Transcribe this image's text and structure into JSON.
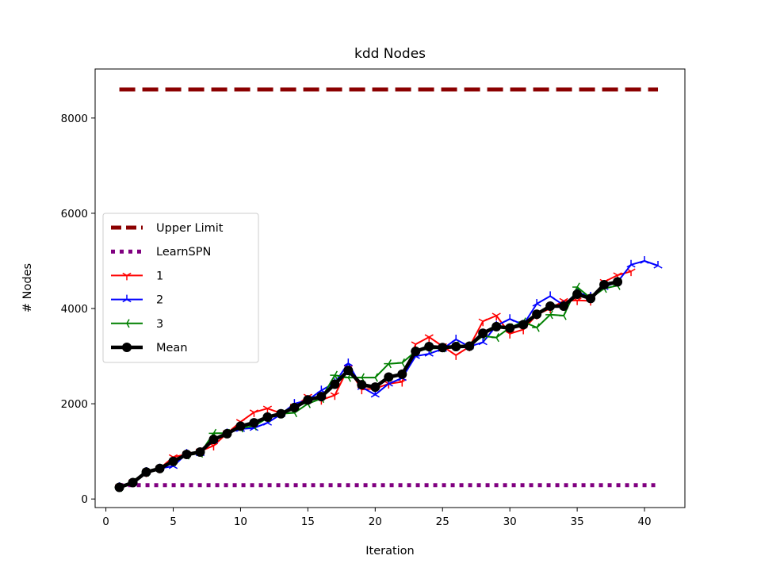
{
  "chart_data": {
    "type": "line",
    "title": "kdd Nodes",
    "xlabel": "Iteration",
    "ylabel": "# Nodes",
    "xlim": [
      -0.8,
      43.0
    ],
    "ylim": [
      -180,
      9030
    ],
    "xticks": [
      0,
      5,
      10,
      15,
      20,
      25,
      30,
      35,
      40
    ],
    "yticks": [
      0,
      2000,
      4000,
      6000,
      8000
    ],
    "grid": false,
    "legend_position": "center-left",
    "reference_lines": [
      {
        "name": "Upper Limit",
        "y": 8600,
        "x_range": [
          1,
          41
        ],
        "color": "#8b0000",
        "style": "dashed"
      },
      {
        "name": "LearnSPN",
        "y": 290,
        "x_range": [
          1,
          41
        ],
        "color": "#800080",
        "style": "dotted"
      }
    ],
    "series": [
      {
        "name": "1",
        "color": "#ff0000",
        "marker": "tri_down",
        "x": [
          1,
          2,
          3,
          4,
          5,
          6,
          7,
          8,
          9,
          10,
          11,
          12,
          13,
          14,
          15,
          16,
          17,
          18,
          19,
          20,
          21,
          22,
          23,
          24,
          25,
          26,
          27,
          28,
          29,
          30,
          31,
          32,
          33,
          34,
          35,
          36,
          37,
          38,
          39
        ],
        "y": [
          250,
          350,
          560,
          640,
          880,
          940,
          1000,
          1120,
          1380,
          1620,
          1820,
          1900,
          1800,
          1940,
          2150,
          2080,
          2180,
          2750,
          2300,
          2320,
          2420,
          2460,
          3250,
          3400,
          3210,
          3020,
          3200,
          3730,
          3850,
          3470,
          3560,
          3870,
          4000,
          4160,
          4170,
          4160,
          4560,
          4700,
          4780
        ]
      },
      {
        "name": "2",
        "color": "#0000ff",
        "marker": "tri_up",
        "x": [
          1,
          2,
          3,
          4,
          5,
          6,
          7,
          8,
          9,
          10,
          11,
          12,
          13,
          14,
          15,
          16,
          17,
          18,
          19,
          20,
          21,
          22,
          23,
          24,
          25,
          26,
          27,
          28,
          29,
          30,
          31,
          32,
          33,
          34,
          35,
          36,
          37,
          38,
          39,
          40,
          41
        ],
        "y": [
          250,
          340,
          570,
          640,
          690,
          950,
          960,
          1230,
          1380,
          1470,
          1490,
          1600,
          1780,
          2000,
          2080,
          2280,
          2440,
          2850,
          2350,
          2190,
          2420,
          2540,
          3000,
          3050,
          3150,
          3350,
          3200,
          3290,
          3640,
          3780,
          3660,
          4100,
          4260,
          4070,
          4340,
          4250,
          4450,
          4560,
          4920,
          5000,
          4900
        ]
      },
      {
        "name": "3",
        "color": "#008000",
        "marker": "tri_left",
        "x": [
          1,
          2,
          3,
          4,
          5,
          6,
          7,
          8,
          9,
          10,
          11,
          12,
          13,
          14,
          15,
          16,
          17,
          18,
          19,
          20,
          21,
          22,
          23,
          24,
          25,
          26,
          27,
          28,
          29,
          30,
          31,
          32,
          33,
          34,
          35,
          36,
          37,
          38
        ],
        "y": [
          240,
          350,
          560,
          640,
          780,
          920,
          960,
          1380,
          1380,
          1490,
          1530,
          1700,
          1790,
          1810,
          2000,
          2110,
          2600,
          2550,
          2550,
          2550,
          2840,
          2860,
          3100,
          3160,
          3170,
          3220,
          3220,
          3420,
          3390,
          3600,
          3720,
          3600,
          3870,
          3850,
          4450,
          4220,
          4420,
          4480
        ]
      },
      {
        "name": "Mean",
        "color": "#000000",
        "marker": "circle",
        "x": [
          1,
          2,
          3,
          4,
          5,
          6,
          7,
          8,
          9,
          10,
          11,
          12,
          13,
          14,
          15,
          16,
          17,
          18,
          19,
          20,
          21,
          22,
          23,
          24,
          25,
          26,
          27,
          28,
          29,
          30,
          31,
          32,
          33,
          34,
          35,
          36,
          37,
          38
        ],
        "y": [
          245,
          345,
          565,
          640,
          790,
          935,
          985,
          1250,
          1370,
          1530,
          1600,
          1720,
          1790,
          1920,
          2080,
          2150,
          2410,
          2700,
          2400,
          2350,
          2560,
          2620,
          3100,
          3200,
          3180,
          3200,
          3210,
          3480,
          3620,
          3590,
          3660,
          3880,
          4050,
          4050,
          4300,
          4210,
          4500,
          4560
        ]
      }
    ]
  }
}
